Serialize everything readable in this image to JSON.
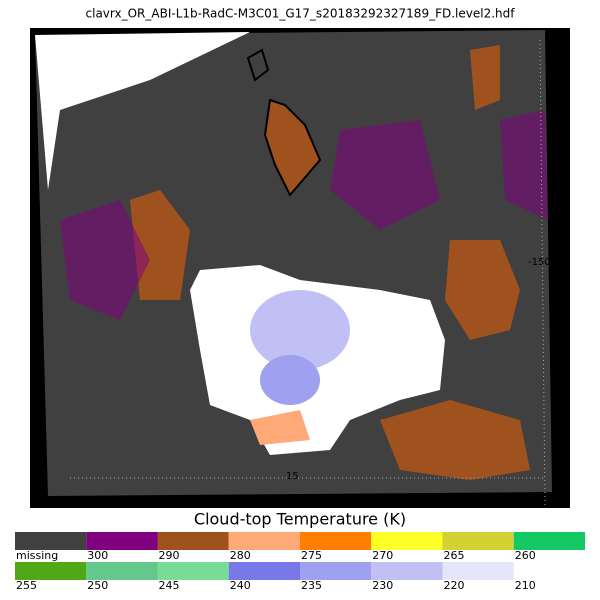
{
  "header": {
    "title": "clavrx_OR_ABI-L1b-RadC-M3C01_G17_s20183292327189_FD.level2.hdf"
  },
  "map": {
    "annotations": [
      "-150",
      "15"
    ]
  },
  "colorbar": {
    "title": "Cloud-top Temperature (K)",
    "rows": [
      [
        {
          "label": "missing",
          "color": "#404040"
        },
        {
          "label": "300",
          "color": "#800080"
        },
        {
          "label": "290",
          "color": "#a0521e"
        },
        {
          "label": "280",
          "color": "#ffa878"
        },
        {
          "label": "275",
          "color": "#ff8000"
        },
        {
          "label": "270",
          "color": "#ffff28"
        },
        {
          "label": "265",
          "color": "#d2d232"
        },
        {
          "label": "260",
          "color": "#14c864"
        }
      ],
      [
        {
          "label": "255",
          "color": "#50a818"
        },
        {
          "label": "250",
          "color": "#64c88c"
        },
        {
          "label": "245",
          "color": "#78dc96"
        },
        {
          "label": "240",
          "color": "#7878e6"
        },
        {
          "label": "235",
          "color": "#a0a0f0"
        },
        {
          "label": "230",
          "color": "#c0c0f5"
        },
        {
          "label": "220",
          "color": "#e6e6fa"
        },
        {
          "label": "210",
          "color": "#ffffff"
        }
      ]
    ]
  }
}
